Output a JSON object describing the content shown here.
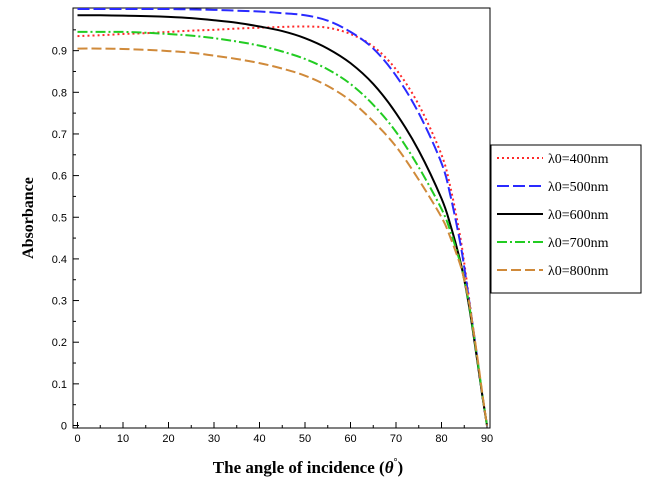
{
  "chart_data": {
    "type": "line",
    "xlabel_main": "The angle of incidence (",
    "xlabel_theta": "θ",
    "xlabel_degree": "°",
    "xlabel_close": ")",
    "ylabel": "Absorbance",
    "xlim": [
      0,
      91
    ],
    "ylim": [
      0,
      1.0
    ],
    "xticks": [
      "0",
      "10",
      "20",
      "30",
      "40",
      "50",
      "60",
      "70",
      "80",
      "90"
    ],
    "yticks": [
      "0",
      "0.1",
      "0.2",
      "0.3",
      "0.4",
      "0.5",
      "0.6",
      "0.7",
      "0.8",
      "0.9"
    ],
    "grid": false,
    "legend_position": "right",
    "x": [
      0,
      5,
      10,
      15,
      20,
      25,
      30,
      35,
      40,
      45,
      50,
      55,
      60,
      65,
      70,
      75,
      80,
      82,
      84,
      85,
      86,
      87,
      88,
      89,
      90
    ],
    "series": [
      {
        "name": "λ0=400nm",
        "color": "#ff2a2a",
        "dash": "2,3",
        "values": [
          0.935,
          0.937,
          0.94,
          0.942,
          0.945,
          0.948,
          0.95,
          0.953,
          0.955,
          0.957,
          0.958,
          0.955,
          0.94,
          0.91,
          0.855,
          0.77,
          0.65,
          0.57,
          0.46,
          0.39,
          0.31,
          0.23,
          0.15,
          0.07,
          0.0
        ]
      },
      {
        "name": "λ0=500nm",
        "color": "#2a2aff",
        "dash": "12,4",
        "values": [
          1.0,
          1.0,
          1.0,
          1.0,
          1.0,
          0.999,
          0.998,
          0.996,
          0.994,
          0.99,
          0.985,
          0.972,
          0.945,
          0.905,
          0.84,
          0.75,
          0.63,
          0.55,
          0.445,
          0.38,
          0.305,
          0.23,
          0.15,
          0.07,
          0.0
        ]
      },
      {
        "name": "λ0=600nm",
        "color": "#000000",
        "dash": "",
        "values": [
          0.985,
          0.985,
          0.984,
          0.983,
          0.981,
          0.978,
          0.973,
          0.967,
          0.958,
          0.947,
          0.93,
          0.905,
          0.87,
          0.82,
          0.75,
          0.66,
          0.545,
          0.48,
          0.4,
          0.35,
          0.29,
          0.22,
          0.145,
          0.07,
          0.0
        ]
      },
      {
        "name": "λ0=700nm",
        "color": "#22cc22",
        "dash": "10,3,2,3",
        "values": [
          0.945,
          0.945,
          0.945,
          0.943,
          0.94,
          0.936,
          0.93,
          0.922,
          0.912,
          0.898,
          0.88,
          0.855,
          0.82,
          0.77,
          0.705,
          0.62,
          0.52,
          0.465,
          0.395,
          0.35,
          0.295,
          0.225,
          0.15,
          0.072,
          0.0
        ]
      },
      {
        "name": "λ0=800nm",
        "color": "#d08a3a",
        "dash": "10,4",
        "values": [
          0.905,
          0.905,
          0.904,
          0.902,
          0.899,
          0.895,
          0.888,
          0.88,
          0.87,
          0.857,
          0.84,
          0.815,
          0.78,
          0.73,
          0.67,
          0.59,
          0.5,
          0.45,
          0.39,
          0.35,
          0.3,
          0.23,
          0.155,
          0.075,
          0.0
        ]
      }
    ]
  }
}
